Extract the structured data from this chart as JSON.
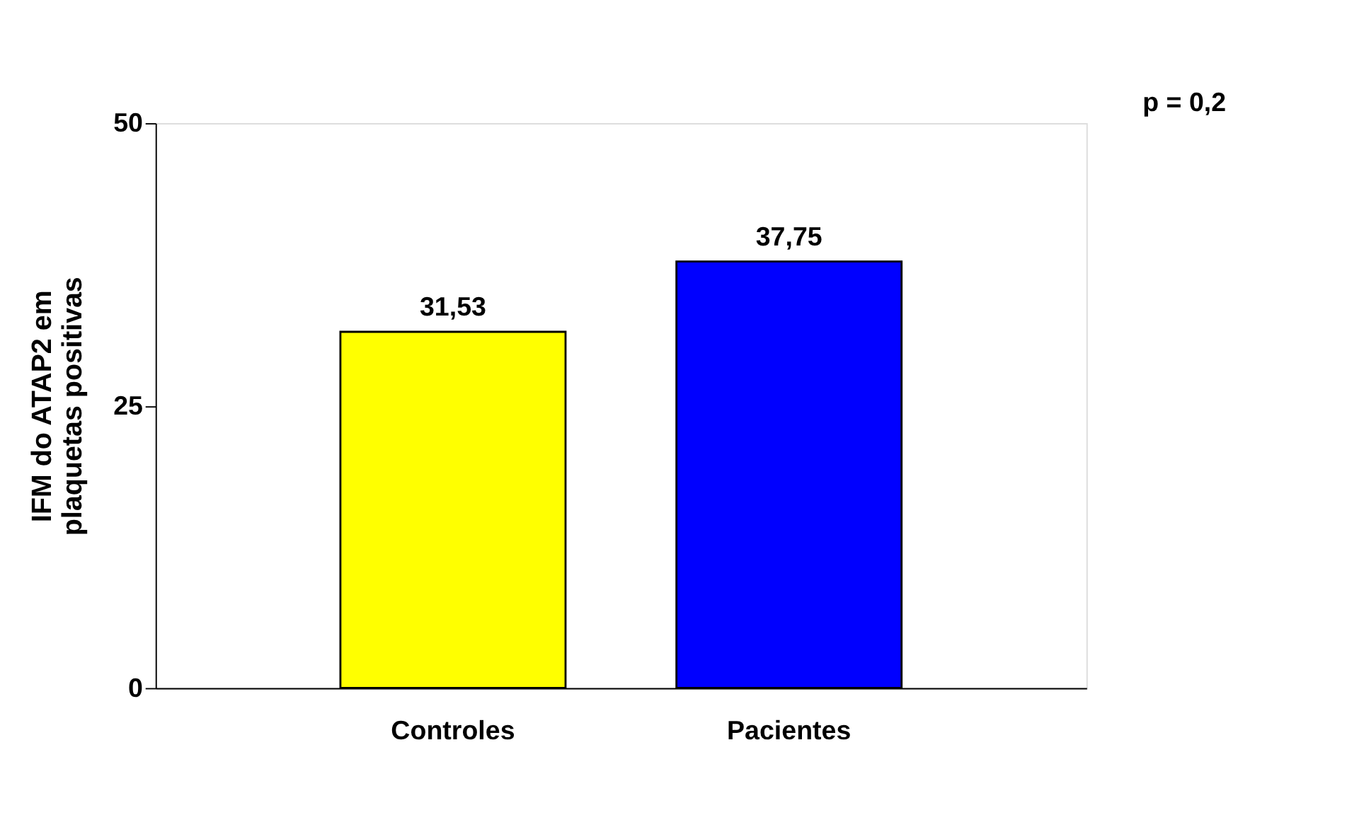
{
  "chart_data": {
    "type": "bar",
    "ylabel": "IFM do ATAP2 em\nplaquetas positivas",
    "categories": [
      "Controles",
      "Pacientes"
    ],
    "values": [
      31.53,
      37.75
    ],
    "colors": [
      "#ffff00",
      "#0000ff"
    ],
    "value_labels": [
      "31,53",
      "37,75"
    ],
    "ylim": [
      0,
      50
    ],
    "yticks": [
      0,
      25,
      50
    ],
    "annotations": [
      "p = 0,2"
    ],
    "grid": false
  }
}
